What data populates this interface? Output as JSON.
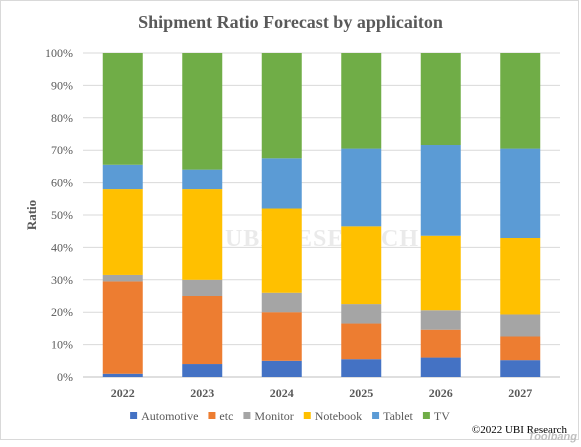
{
  "chart_data": {
    "type": "bar",
    "stacked": true,
    "title": "Shipment Ratio Forecast by applicaiton",
    "ylabel": "Ratio",
    "xlabel": "",
    "ylim": [
      0,
      100
    ],
    "yticks": [
      "0%",
      "10%",
      "20%",
      "30%",
      "40%",
      "50%",
      "60%",
      "70%",
      "80%",
      "90%",
      "100%"
    ],
    "grid": true,
    "legend_position": "bottom",
    "categories": [
      "2022",
      "2023",
      "2024",
      "2025",
      "2026",
      "2027"
    ],
    "series": [
      {
        "name": "Automotive",
        "color": "#4472c4",
        "values": [
          1,
          4,
          5,
          5.5,
          6,
          5.2
        ]
      },
      {
        "name": "etc",
        "color": "#ed7d31",
        "values": [
          28.5,
          21,
          15,
          11,
          8.6,
          7.3
        ]
      },
      {
        "name": "Monitor",
        "color": "#a5a5a5",
        "values": [
          2,
          5,
          6,
          6,
          6,
          6.8
        ]
      },
      {
        "name": "Notebook",
        "color": "#ffc000",
        "values": [
          26.5,
          28,
          26,
          24,
          23,
          23.6
        ]
      },
      {
        "name": "Tablet",
        "color": "#5b9bd5",
        "values": [
          7.5,
          6,
          15.5,
          24,
          28,
          27.6
        ]
      },
      {
        "name": "TV",
        "color": "#70ad47",
        "values": [
          34.5,
          36,
          32.5,
          29.5,
          28.4,
          29.5
        ]
      }
    ]
  },
  "watermark": "UBI RESEARCH",
  "credit": "©2022 UBI Research",
  "corner_mark": "Toolbang"
}
